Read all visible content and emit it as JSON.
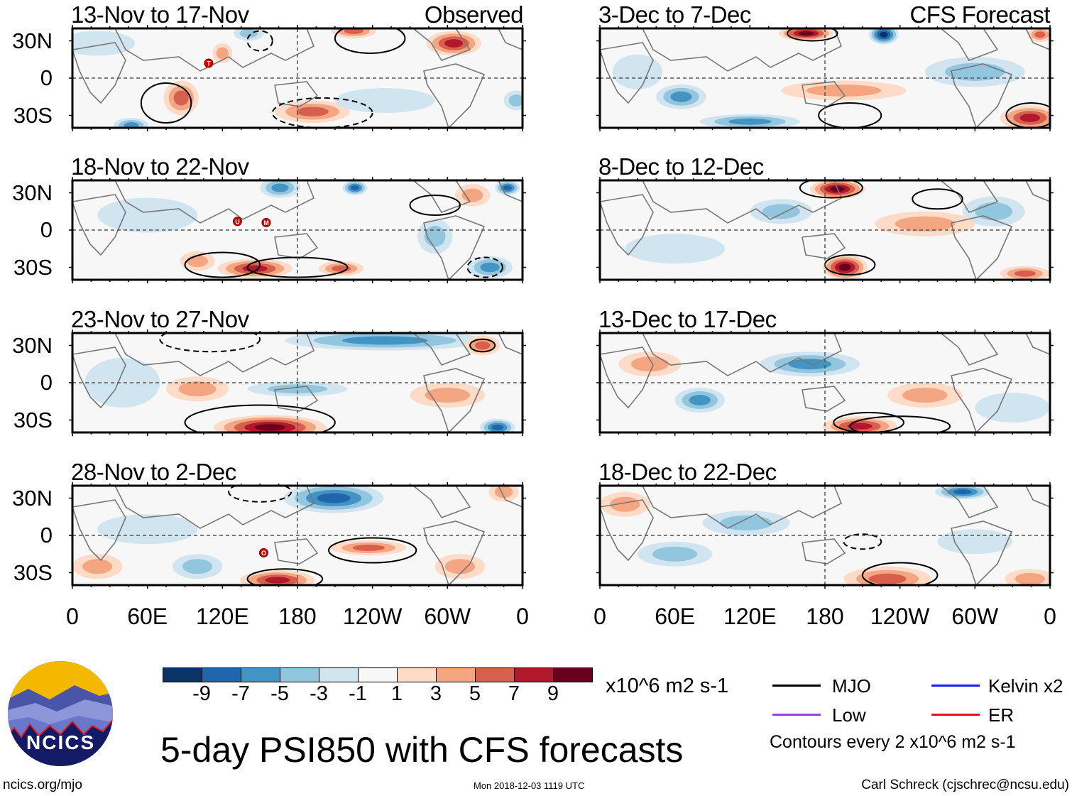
{
  "figure": {
    "title": "5-day PSI850 with CFS forecasts",
    "units": "x10^6 m2 s-1",
    "contour_note": "Contours every 2 x10^6 m2 s-1",
    "website": "ncics.org/mjo",
    "timestamp": "Mon 2018-12-03 1119 UTC",
    "author": "Carl Schreck (cjschrec@ncsu.edu)",
    "logo_text": "NCICS",
    "observed_label": "Observed",
    "forecast_label": "CFS Forecast"
  },
  "chart_data": {
    "type": "heatmap",
    "variable": "850-hPa streamfunction anomaly (5-day mean)",
    "units": "x10^6 m2 s-1",
    "lon_range": [
      0,
      360
    ],
    "lat_range": [
      -40,
      40
    ],
    "yticks": [
      "30N",
      "0",
      "30S"
    ],
    "xticks": [
      "0",
      "60E",
      "120E",
      "180",
      "120W",
      "60W",
      "0"
    ],
    "colorbar": {
      "labels": [
        "-9",
        "-7",
        "-5",
        "-3",
        "-1",
        "1",
        "3",
        "5",
        "7",
        "9"
      ],
      "colors": [
        "#0b3466",
        "#2166ac",
        "#4393c3",
        "#92c5de",
        "#d1e5f0",
        "#f7f7f7",
        "#fddbc7",
        "#f4a582",
        "#d6604d",
        "#b2182b",
        "#67001f"
      ]
    },
    "legend": [
      {
        "label": "MJO",
        "color": "#000000"
      },
      {
        "label": "Kelvin x2",
        "color": "#1a1aff"
      },
      {
        "label": "Low",
        "color": "#a040e0"
      },
      {
        "label": "ER",
        "color": "#ee1111"
      }
    ],
    "panels": [
      {
        "title": "13-Nov to 17-Nov",
        "kind": "observed",
        "storms": [
          {
            "letter": "T",
            "lon": 109,
            "lat": 12
          }
        ]
      },
      {
        "title": "18-Nov to 22-Nov",
        "kind": "observed",
        "storms": [
          {
            "letter": "U",
            "lon": 132,
            "lat": 7
          },
          {
            "letter": "M",
            "lon": 155,
            "lat": 6
          }
        ]
      },
      {
        "title": "23-Nov to 27-Nov",
        "kind": "observed",
        "storms": []
      },
      {
        "title": "28-Nov to 2-Dec",
        "kind": "observed",
        "storms": [
          {
            "letter": "O",
            "lon": 153,
            "lat": -14
          }
        ]
      },
      {
        "title": "3-Dec to 7-Dec",
        "kind": "forecast",
        "storms": []
      },
      {
        "title": "8-Dec to 12-Dec",
        "kind": "forecast",
        "storms": []
      },
      {
        "title": "13-Dec to 17-Dec",
        "kind": "forecast",
        "storms": []
      },
      {
        "title": "18-Dec to 22-Dec",
        "kind": "forecast",
        "storms": []
      }
    ]
  }
}
